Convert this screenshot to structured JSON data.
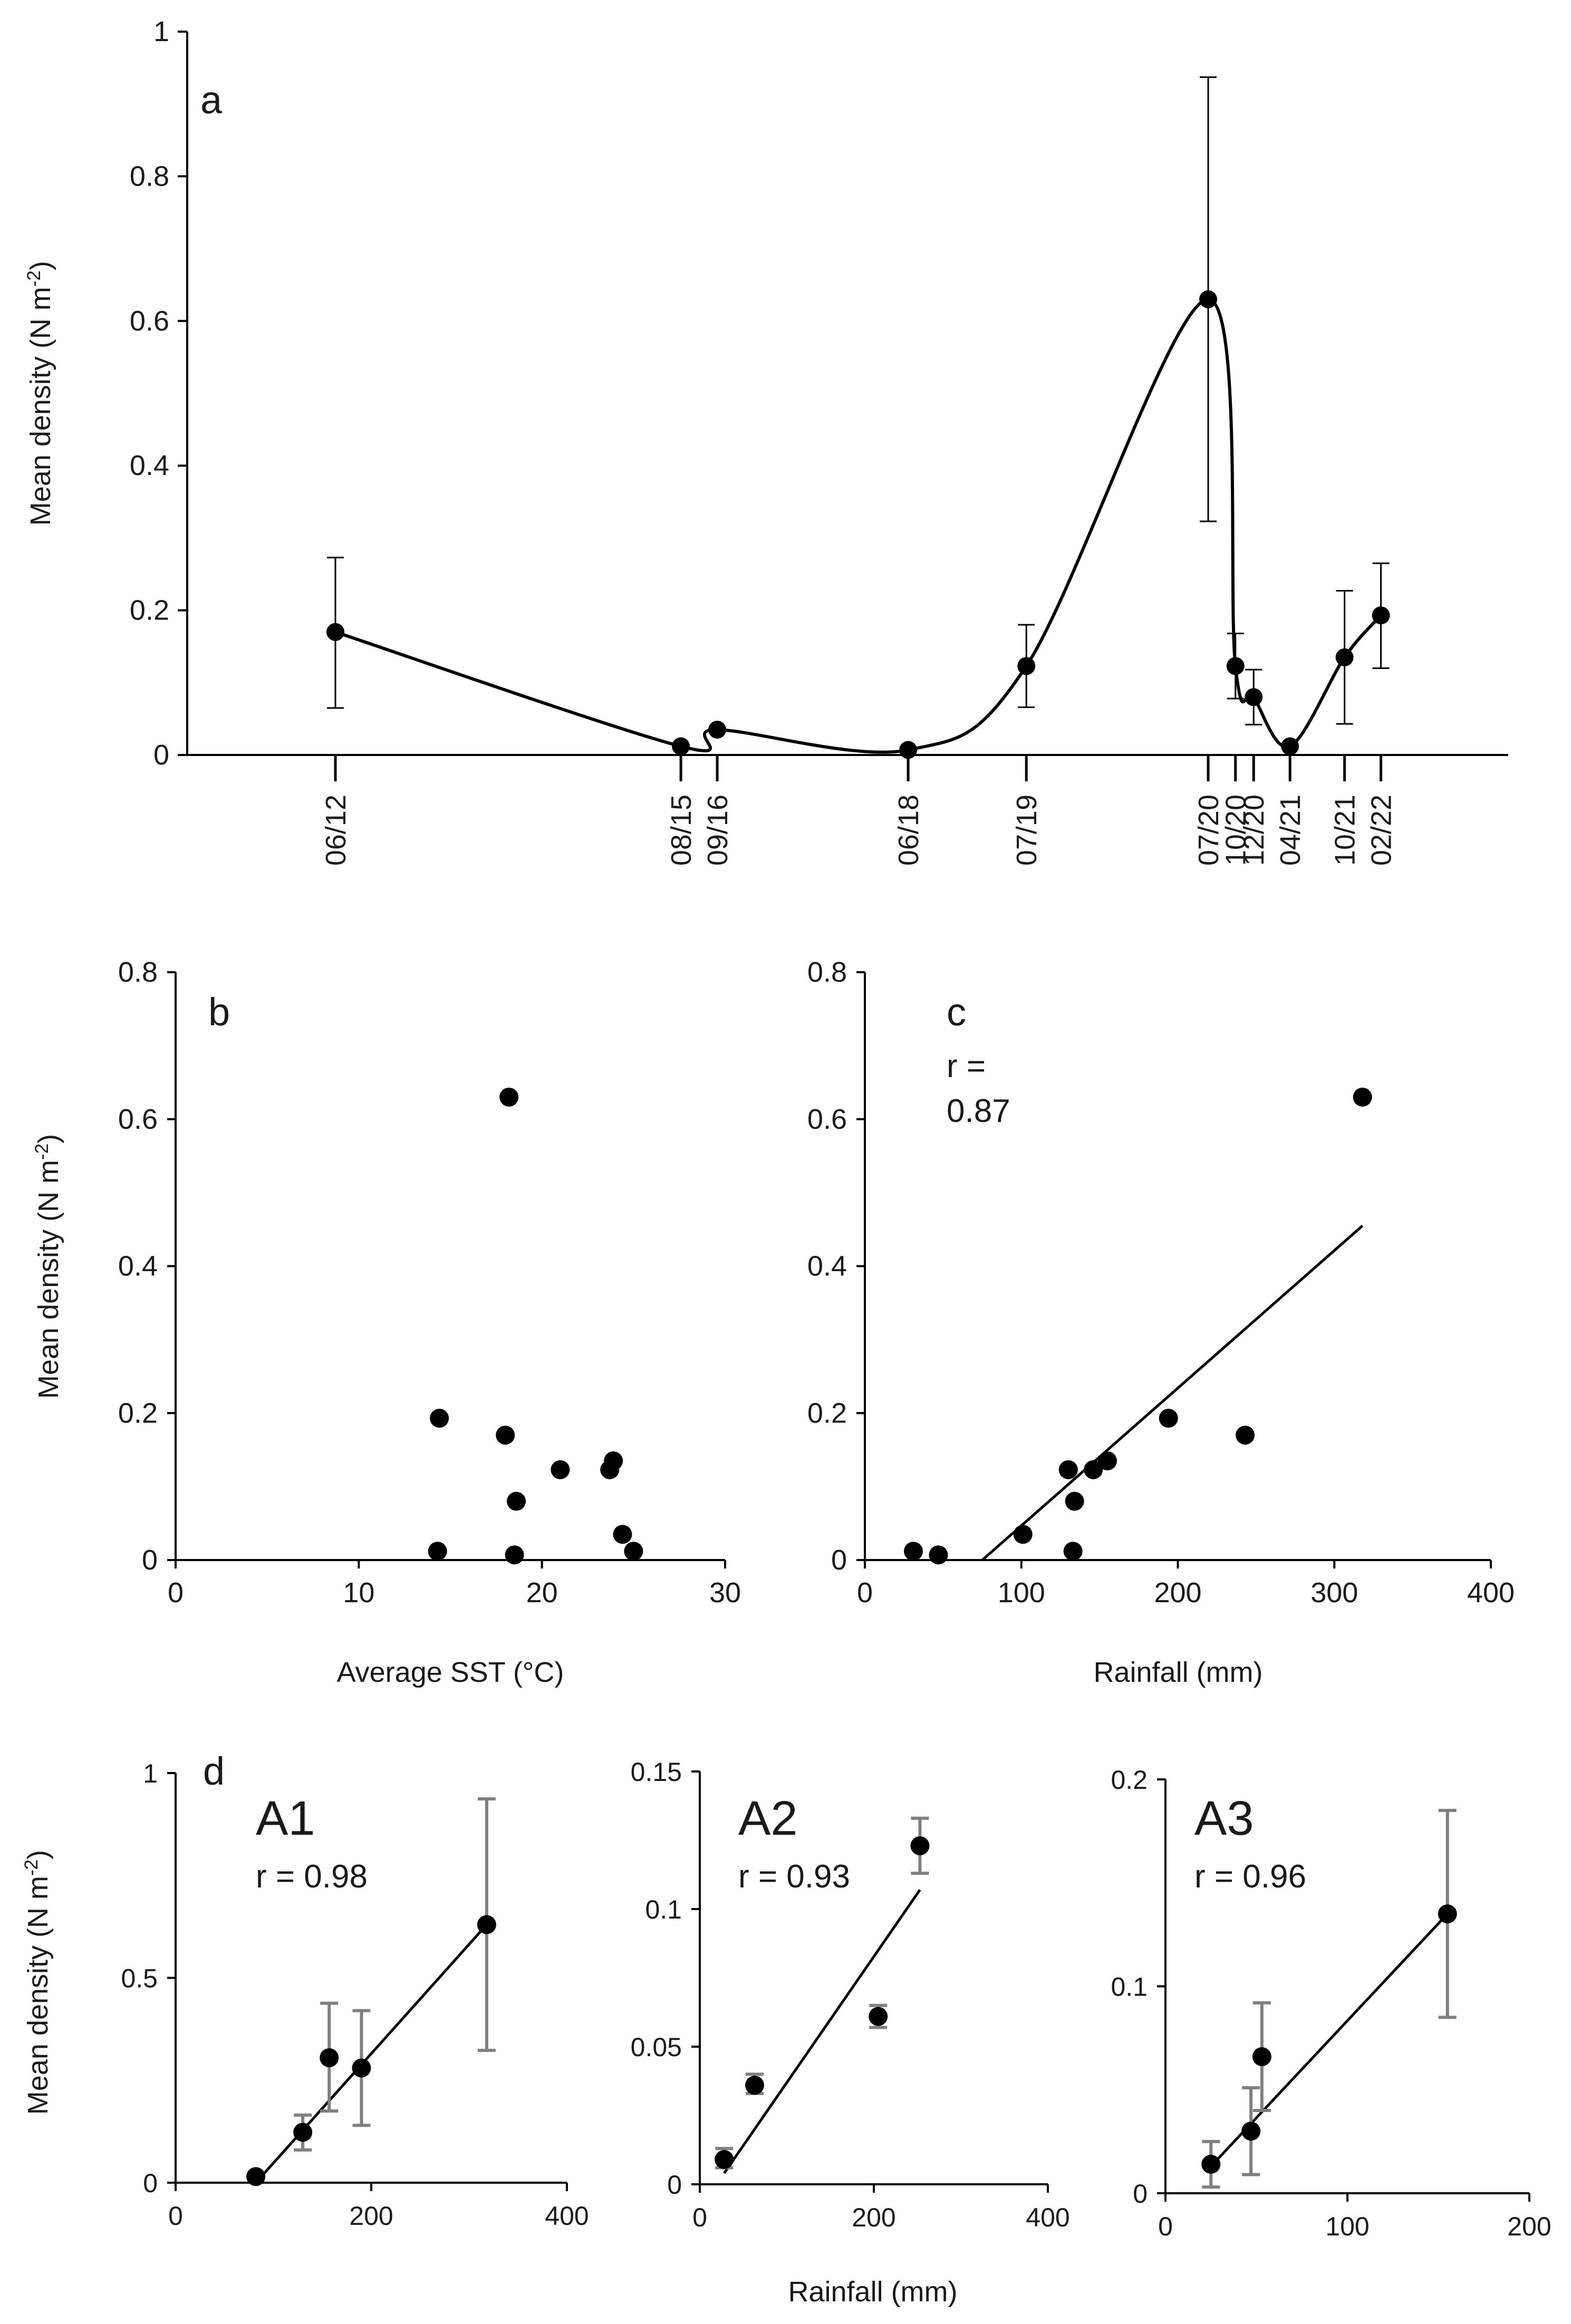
{
  "y_unit_base": "Mean density (N m",
  "y_unit_exp": "-2",
  "y_unit_close": ")",
  "chart_data": [
    {
      "id": "a",
      "type": "line",
      "panel_label": "a",
      "ylabel": "Mean density (N m-2)",
      "xlabel": "",
      "ylim": [
        0,
        1
      ],
      "yticks": [
        "0",
        "0.2",
        "0.4",
        "0.6",
        "0.8",
        "1"
      ],
      "dates": [
        "06/12",
        "08/15",
        "09/16",
        "06/18",
        "07/19",
        "07/20",
        "10/20",
        "12/20",
        "04/21",
        "10/21",
        "02/22"
      ],
      "date_index": [
        0,
        38,
        42,
        63,
        76,
        96,
        99,
        101,
        105,
        111,
        115
      ],
      "values": [
        0.17,
        0.012,
        0.035,
        0.007,
        0.123,
        0.63,
        0.123,
        0.08,
        0.012,
        0.135,
        0.193
      ],
      "err_lo": [
        0.065,
        0.012,
        0.035,
        0.007,
        0.066,
        0.323,
        0.078,
        0.042,
        0.012,
        0.043,
        0.12
      ],
      "err_hi": [
        0.273,
        0.012,
        0.035,
        0.007,
        0.18,
        0.937,
        0.168,
        0.118,
        0.012,
        0.227,
        0.265
      ]
    },
    {
      "id": "b",
      "type": "scatter",
      "panel_label": "b",
      "xlabel": "Average SST (°C)",
      "ylabel": "Mean density (N m-2)",
      "xlim": [
        0,
        30
      ],
      "ylim": [
        0,
        0.8
      ],
      "xticks": [
        "0",
        "10",
        "20",
        "30"
      ],
      "yticks": [
        "0",
        "0.2",
        "0.4",
        "0.6",
        "0.8"
      ],
      "x": [
        18.2,
        14.4,
        18.0,
        21.0,
        23.7,
        23.9,
        18.6,
        24.4,
        14.3,
        18.5,
        25.0
      ],
      "y": [
        0.63,
        0.193,
        0.17,
        0.123,
        0.123,
        0.135,
        0.08,
        0.035,
        0.012,
        0.007,
        0.012
      ]
    },
    {
      "id": "c",
      "type": "scatter",
      "panel_label": "c",
      "annotation_line1": "r =",
      "annotation_line2": "0.87",
      "xlabel": "Rainfall (mm)",
      "xlim": [
        0,
        400
      ],
      "ylim": [
        0,
        0.8
      ],
      "xticks": [
        "0",
        "100",
        "200",
        "300",
        "400"
      ],
      "yticks": [
        "0",
        "0.2",
        "0.4",
        "0.6",
        "0.8"
      ],
      "x": [
        318,
        194,
        243,
        155,
        146,
        130,
        134,
        101,
        31,
        47,
        133
      ],
      "y": [
        0.63,
        0.193,
        0.17,
        0.135,
        0.123,
        0.123,
        0.08,
        0.035,
        0.012,
        0.007,
        0.012
      ],
      "fit": {
        "x": [
          75,
          318
        ],
        "y": [
          0,
          0.455
        ]
      }
    },
    {
      "id": "d-A1",
      "type": "scatter",
      "panel_label": "d",
      "title": "A1",
      "annotation": "r = 0.98",
      "ylabel": "Mean density (N m-2)",
      "xlim": [
        0,
        400
      ],
      "ylim": [
        0,
        1
      ],
      "xticks": [
        "0",
        "200",
        "400"
      ],
      "yticks": [
        "0",
        "0.5",
        "1"
      ],
      "x": [
        82,
        130,
        157,
        190,
        318
      ],
      "y": [
        0.015,
        0.123,
        0.305,
        0.28,
        0.63
      ],
      "err_lo": [
        0.015,
        0.08,
        0.175,
        0.14,
        0.323
      ],
      "err_hi": [
        0.015,
        0.165,
        0.438,
        0.42,
        0.937
      ],
      "fit": {
        "x": [
          82,
          318
        ],
        "y": [
          0.0,
          0.63
        ]
      }
    },
    {
      "id": "d-A2",
      "type": "scatter",
      "title": "A2",
      "annotation": "r = 0.93",
      "xlabel": "Rainfall (mm)",
      "xlim": [
        0,
        400
      ],
      "ylim": [
        0,
        0.15
      ],
      "xticks": [
        "0",
        "200",
        "400"
      ],
      "yticks": [
        "0",
        "0.05",
        "0.1",
        "0.15"
      ],
      "x": [
        28,
        63,
        205,
        253
      ],
      "y": [
        0.009,
        0.036,
        0.061,
        0.123
      ],
      "err_lo": [
        0.006,
        0.033,
        0.057,
        0.113
      ],
      "err_hi": [
        0.013,
        0.04,
        0.065,
        0.133
      ],
      "fit": {
        "x": [
          28,
          253
        ],
        "y": [
          0.004,
          0.107
        ]
      }
    },
    {
      "id": "d-A3",
      "type": "scatter",
      "title": "A3",
      "annotation": "r = 0.96",
      "xlim": [
        0,
        200
      ],
      "ylim": [
        0,
        0.2
      ],
      "xticks": [
        "0",
        "100",
        "200"
      ],
      "yticks": [
        "0",
        "0.1",
        "0.2"
      ],
      "x": [
        25,
        47,
        53,
        155
      ],
      "y": [
        0.014,
        0.03,
        0.066,
        0.135
      ],
      "err_lo": [
        0.003,
        0.009,
        0.04,
        0.085
      ],
      "err_hi": [
        0.025,
        0.051,
        0.092,
        0.185
      ],
      "fit": {
        "x": [
          25,
          155
        ],
        "y": [
          0.013,
          0.135
        ]
      }
    }
  ]
}
